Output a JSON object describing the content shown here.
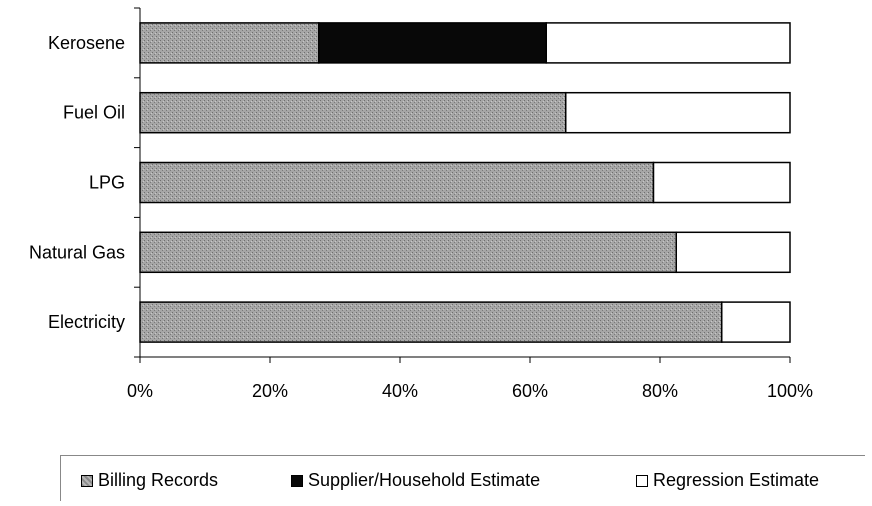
{
  "chart_data": {
    "type": "bar",
    "orientation": "horizontal",
    "stacked": true,
    "percent_scale": true,
    "categories": [
      "Kerosene",
      "Fuel Oil",
      "LPG",
      "Natural Gas",
      "Electricity"
    ],
    "series": [
      {
        "name": "Billing Records",
        "values": [
          27.5,
          65.5,
          79,
          82.5,
          89.5
        ],
        "color": "#9c9c9c"
      },
      {
        "name": "Supplier/Household Estimate",
        "values": [
          35,
          0,
          0,
          0,
          0
        ],
        "color": "#080808"
      },
      {
        "name": "Regression Estimate",
        "values": [
          37.5,
          34.5,
          21,
          17.5,
          10.5
        ],
        "color": "#ffffff"
      }
    ],
    "x_ticks": [
      "0%",
      "20%",
      "40%",
      "60%",
      "80%",
      "100%"
    ],
    "xlim": [
      0,
      100
    ],
    "grid": false,
    "legend_position": "bottom"
  }
}
